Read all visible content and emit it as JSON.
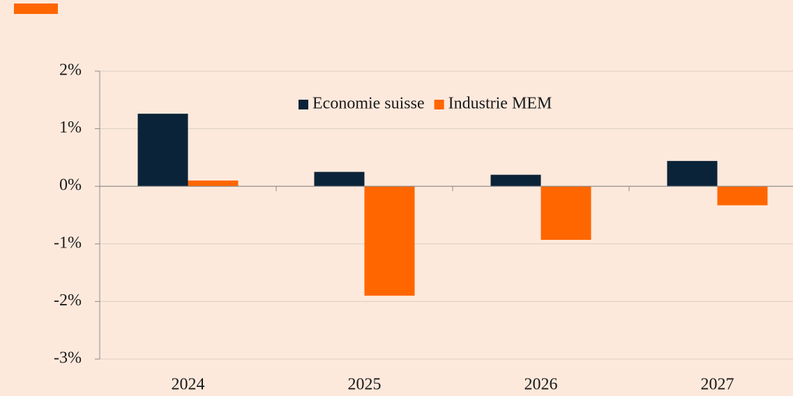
{
  "chart_data": {
    "type": "bar",
    "categories": [
      "2024",
      "2025",
      "2026",
      "2027"
    ],
    "series": [
      {
        "name": "Economie suisse",
        "color": "#0b2338",
        "values": [
          1.26,
          0.25,
          0.2,
          0.44
        ]
      },
      {
        "name": "Industrie MEM",
        "color": "#ff6600",
        "values": [
          0.1,
          -1.9,
          -0.93,
          -0.33
        ]
      }
    ],
    "ylim": [
      -3,
      2
    ],
    "yticks": [
      {
        "value": -3,
        "label": "-3%"
      },
      {
        "value": -2,
        "label": "-2%"
      },
      {
        "value": -1,
        "label": "-1%"
      },
      {
        "value": 0,
        "label": "0%"
      },
      {
        "value": 1,
        "label": "1%"
      },
      {
        "value": 2,
        "label": "2%"
      }
    ],
    "grid": true,
    "legend": "top"
  }
}
